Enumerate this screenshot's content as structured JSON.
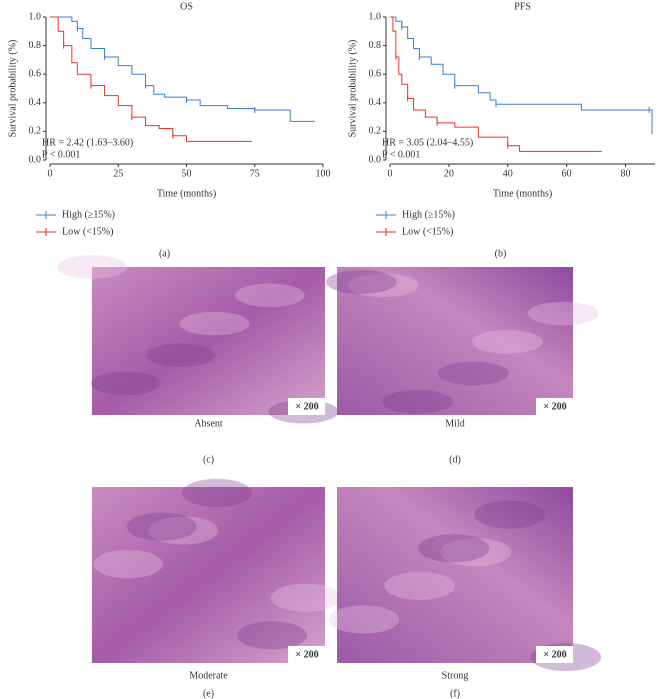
{
  "chart_data": [
    {
      "type": "step",
      "title": "OS",
      "x_label": "Time (months)",
      "y_label": "Survival probability (%)",
      "annotations": [
        "HR = 2.42 (1.63–3.60)",
        "P < 0.001"
      ],
      "panel_label": "(a)",
      "xlim": [
        0,
        100
      ],
      "xticks": [
        0,
        25,
        50,
        75,
        100
      ],
      "ylim": [
        0,
        100
      ],
      "yticks": [
        {
          "value": 0,
          "label": "0.0"
        },
        {
          "value": 20,
          "label": "0.2"
        },
        {
          "value": 40,
          "label": "0.4"
        },
        {
          "value": 60,
          "label": "0.6"
        },
        {
          "value": 80,
          "label": "0.8"
        },
        {
          "value": 100,
          "label": "1.0"
        }
      ],
      "series": [
        {
          "name": "High (≥15%)",
          "color": "#3a7fd5",
          "x": [
            0,
            8,
            10,
            12,
            15,
            20,
            25,
            30,
            35,
            38,
            42,
            50,
            55,
            65,
            75,
            88,
            97
          ],
          "values": [
            100,
            97,
            92,
            85,
            78,
            72,
            66,
            60,
            52,
            46,
            44,
            42,
            38,
            36,
            35,
            27,
            27
          ]
        },
        {
          "name": "Low (<15%)",
          "color": "#e8332a",
          "x": [
            0,
            3,
            5,
            8,
            10,
            15,
            20,
            25,
            30,
            35,
            40,
            45,
            50,
            74
          ],
          "values": [
            100,
            90,
            80,
            68,
            60,
            52,
            45,
            38,
            30,
            24,
            22,
            17,
            13,
            13
          ]
        }
      ]
    },
    {
      "type": "step",
      "title": "PFS",
      "x_label": "Time (months)",
      "y_label": "Survival probability (%)",
      "annotations": [
        "HR = 3.05 (2.04–4.55)",
        "P < 0.001"
      ],
      "panel_label": "(b)",
      "xlim": [
        0,
        90
      ],
      "xticks": [
        0,
        20,
        40,
        60,
        80
      ],
      "ylim": [
        0,
        100
      ],
      "yticks": [
        {
          "value": 0,
          "label": "0.0"
        },
        {
          "value": 20,
          "label": "0.2"
        },
        {
          "value": 40,
          "label": "0.4"
        },
        {
          "value": 60,
          "label": "0.6"
        },
        {
          "value": 80,
          "label": "0.8"
        },
        {
          "value": 100,
          "label": "1.0"
        }
      ],
      "series": [
        {
          "name": "High (≥15%)",
          "color": "#3a7fd5",
          "x": [
            0,
            2,
            4,
            6,
            8,
            10,
            14,
            18,
            22,
            30,
            34,
            36,
            45,
            65,
            88,
            89
          ],
          "values": [
            100,
            97,
            93,
            85,
            78,
            72,
            67,
            60,
            52,
            47,
            42,
            39,
            39,
            35,
            35,
            18
          ]
        },
        {
          "name": "Low (<15%)",
          "color": "#e8332a",
          "x": [
            0,
            1,
            2,
            3,
            4,
            6,
            8,
            12,
            16,
            22,
            30,
            40,
            44,
            72
          ],
          "values": [
            100,
            90,
            72,
            60,
            53,
            43,
            35,
            30,
            26,
            23,
            16,
            10,
            6,
            6
          ]
        }
      ]
    }
  ],
  "images": [
    {
      "caption": "Absent",
      "magnification": "× 200",
      "panel_label": "(c)"
    },
    {
      "caption": "Mild",
      "magnification": "× 200",
      "panel_label": "(d)"
    },
    {
      "caption": "Moderate",
      "magnification": "× 200",
      "panel_label": "(e)"
    },
    {
      "caption": "Strong",
      "magnification": "× 200",
      "panel_label": "(f)"
    }
  ]
}
